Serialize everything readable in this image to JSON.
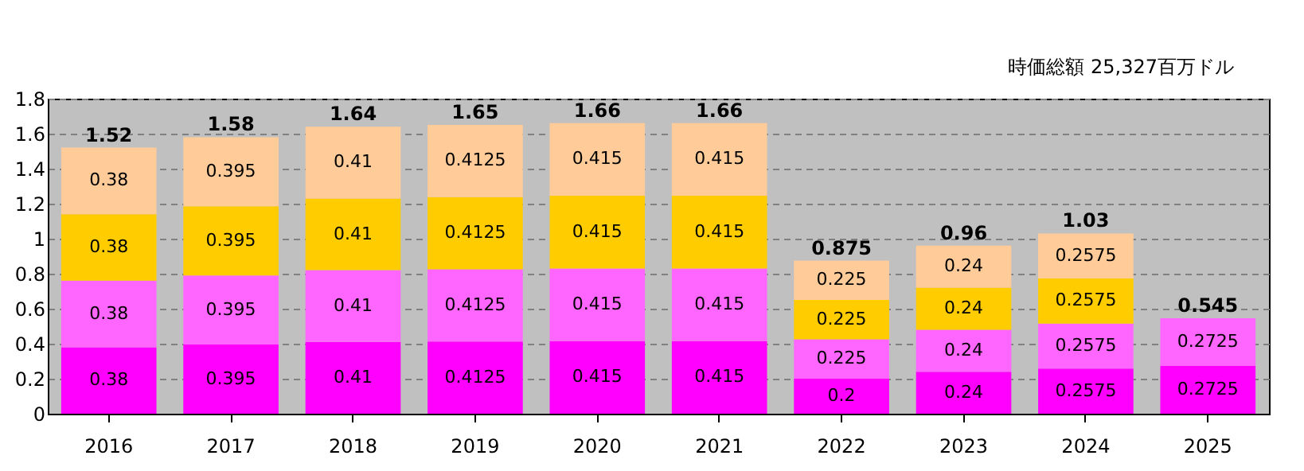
{
  "chart_data": {
    "type": "bar",
    "stacked": true,
    "annotations": [
      "時価総額  25,327百万ドル"
    ],
    "categories": [
      "2016",
      "2017",
      "2018",
      "2019",
      "2020",
      "2021",
      "2022",
      "2023",
      "2024",
      "2025"
    ],
    "series": [
      {
        "color": "#ff00ff",
        "values": [
          0.38,
          0.395,
          0.41,
          0.4125,
          0.415,
          0.415,
          0.2,
          0.24,
          0.2575,
          0.2725
        ]
      },
      {
        "color": "#ff66ff",
        "values": [
          0.38,
          0.395,
          0.41,
          0.4125,
          0.415,
          0.415,
          0.225,
          0.24,
          0.2575,
          0.2725
        ]
      },
      {
        "color": "#ffcc00",
        "values": [
          0.38,
          0.395,
          0.41,
          0.4125,
          0.415,
          0.415,
          0.225,
          0.24,
          0.2575,
          null
        ]
      },
      {
        "color": "#ffcc99",
        "values": [
          0.38,
          0.395,
          0.41,
          0.4125,
          0.415,
          0.415,
          0.225,
          0.24,
          0.2575,
          null
        ]
      }
    ],
    "totals": [
      "1.52",
      "1.58",
      "1.64",
      "1.65",
      "1.66",
      "1.66",
      "0.875",
      "0.96",
      "1.03",
      "0.545"
    ],
    "data_labels": true,
    "ylim": [
      0,
      1.8
    ],
    "yticks": [
      0,
      0.2,
      0.4,
      0.6,
      0.8,
      1,
      1.2,
      1.4,
      1.6,
      1.8
    ],
    "grid": "y"
  }
}
